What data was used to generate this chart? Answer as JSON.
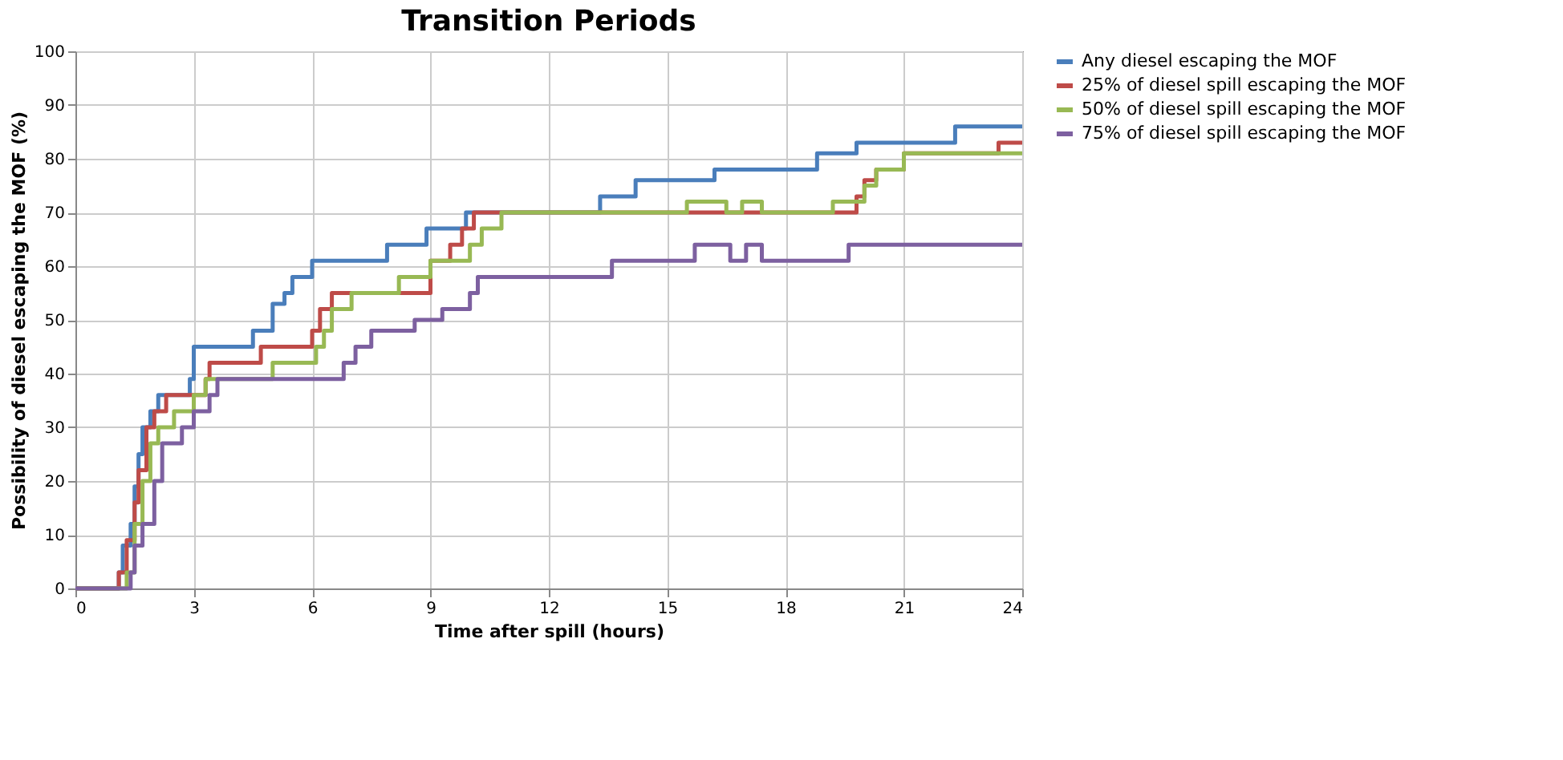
{
  "chart_data": {
    "type": "step",
    "title": "Transition Periods",
    "xlabel": "Time after spill (hours)",
    "ylabel": "Possibility of diesel escaping the MOF (%)",
    "xlim": [
      0,
      24
    ],
    "xticks": [
      0,
      3,
      6,
      9,
      12,
      15,
      18,
      21,
      24
    ],
    "ylim": [
      0,
      100
    ],
    "yticks": [
      0,
      10,
      20,
      30,
      40,
      50,
      60,
      70,
      80,
      90,
      100
    ],
    "grid": true,
    "legend": "right",
    "line_style": "solid",
    "marker": "none",
    "series": [
      {
        "name": "Any diesel escaping the MOF",
        "color": "#4a7ebb",
        "x": [
          0,
          1.1,
          1.2,
          1.4,
          1.5,
          1.6,
          1.7,
          1.9,
          2.1,
          2.9,
          3.0,
          4.5,
          5.0,
          5.3,
          5.5,
          6.0,
          7.9,
          8.9,
          9.9,
          13.3,
          14.2,
          16.2,
          18.8,
          19.8,
          22.3,
          24
        ],
        "values": [
          0,
          3,
          8,
          12,
          19,
          25,
          30,
          33,
          36,
          39,
          45,
          48,
          53,
          55,
          58,
          61,
          64,
          67,
          70,
          73,
          76,
          78,
          81,
          83,
          86,
          86
        ]
      },
      {
        "name": "25% of diesel spill escaping the MOF",
        "color": "#be4b48",
        "x": [
          0,
          1.1,
          1.3,
          1.5,
          1.6,
          1.8,
          2.0,
          2.3,
          3.3,
          3.4,
          4.7,
          6.0,
          6.2,
          6.5,
          9.0,
          9.5,
          9.8,
          10.1,
          19.8,
          20.0,
          20.3,
          21.0,
          23.4,
          24
        ],
        "values": [
          0,
          3,
          9,
          16,
          22,
          30,
          33,
          36,
          39,
          42,
          45,
          48,
          52,
          55,
          61,
          64,
          67,
          70,
          73,
          76,
          78,
          81,
          83,
          83
        ]
      },
      {
        "name": "50% of diesel spill escaping the MOF",
        "color": "#98b954",
        "x": [
          0,
          1.3,
          1.5,
          1.7,
          1.9,
          2.1,
          2.5,
          3.0,
          3.3,
          5.0,
          6.1,
          6.3,
          6.5,
          7.0,
          8.2,
          9.0,
          10.0,
          10.3,
          10.8,
          15.5,
          16.5,
          16.9,
          17.4,
          19.2,
          20.0,
          20.3,
          21.0,
          24
        ],
        "values": [
          0,
          3,
          12,
          20,
          27,
          30,
          33,
          36,
          39,
          42,
          45,
          48,
          52,
          55,
          58,
          61,
          64,
          67,
          70,
          72,
          70,
          72,
          70,
          72,
          75,
          78,
          81,
          81
        ]
      },
      {
        "name": "75% of diesel spill escaping the MOF",
        "color": "#7d60a0",
        "x": [
          0,
          1.4,
          1.5,
          1.7,
          2.0,
          2.2,
          2.7,
          3.0,
          3.4,
          3.6,
          6.8,
          7.1,
          7.5,
          8.6,
          9.3,
          10.0,
          10.2,
          13.6,
          15.7,
          16.6,
          17.0,
          17.4,
          19.6,
          24
        ],
        "values": [
          0,
          3,
          8,
          12,
          20,
          27,
          30,
          33,
          36,
          39,
          42,
          45,
          48,
          50,
          52,
          55,
          58,
          61,
          64,
          61,
          64,
          61,
          64,
          64
        ]
      }
    ]
  }
}
